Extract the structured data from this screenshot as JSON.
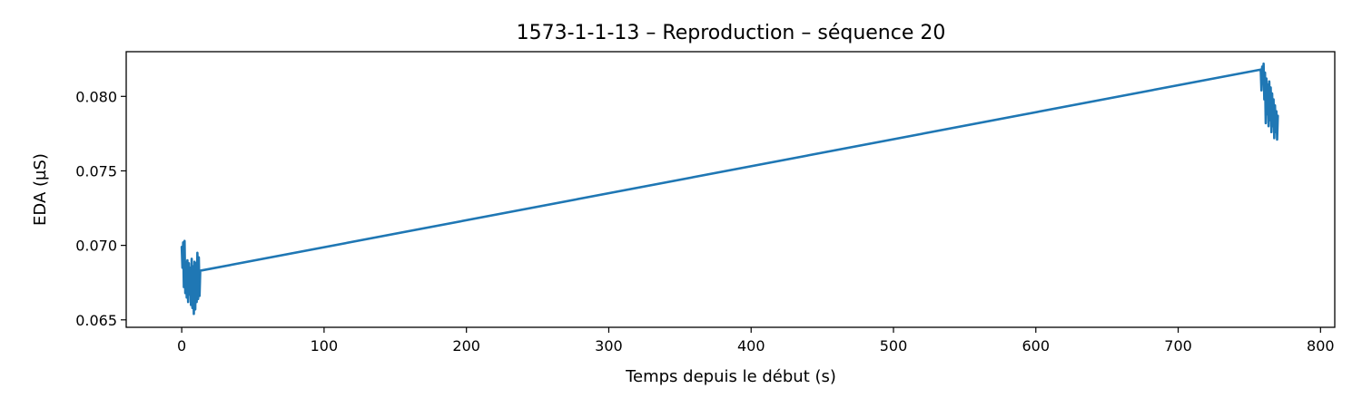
{
  "chart_data": {
    "type": "line",
    "title": "1573-1-1-13 – Reproduction – séquence 20",
    "xlabel": "Temps depuis le début (s)",
    "ylabel": "EDA (µS)",
    "xlim": [
      -39,
      810
    ],
    "ylim": [
      0.0645,
      0.083
    ],
    "xticks": [
      0,
      100,
      200,
      300,
      400,
      500,
      600,
      700,
      800
    ],
    "xtick_labels": [
      "0",
      "100",
      "200",
      "300",
      "400",
      "500",
      "600",
      "700",
      "800"
    ],
    "yticks": [
      0.065,
      0.07,
      0.075,
      0.08
    ],
    "ytick_labels": [
      "0.065",
      "0.070",
      "0.075",
      "0.080"
    ],
    "grid": false,
    "line_color": "#1f77b4",
    "series": [
      {
        "x": [
          0.0,
          0.5,
          1.0,
          1.5,
          2.0,
          2.5,
          3.0,
          3.5,
          4.0,
          4.5,
          5.0,
          5.5,
          6.0,
          6.5,
          7.0,
          7.5,
          8.0,
          8.5,
          9.0,
          9.5,
          10.0,
          10.5,
          11.0,
          11.5,
          12.0,
          12.5,
          13.0,
          758.0,
          758.5,
          759.0,
          759.5,
          760.0,
          760.5,
          761.0,
          761.5,
          762.0,
          762.5,
          763.0,
          763.5,
          764.0,
          764.5,
          765.0,
          765.5,
          766.0,
          766.5,
          767.0,
          767.5,
          768.0,
          768.5,
          769.0,
          769.5,
          770.0
        ],
        "y": [
          0.0699,
          0.0685,
          0.0702,
          0.0672,
          0.0703,
          0.0668,
          0.0689,
          0.0665,
          0.069,
          0.0662,
          0.0688,
          0.0667,
          0.0685,
          0.066,
          0.0691,
          0.0658,
          0.0686,
          0.0654,
          0.0689,
          0.0657,
          0.0688,
          0.0662,
          0.0695,
          0.0664,
          0.0692,
          0.0666,
          0.0683,
          0.0818,
          0.0804,
          0.082,
          0.081,
          0.0822,
          0.0798,
          0.0816,
          0.0782,
          0.0812,
          0.0788,
          0.0808,
          0.078,
          0.081,
          0.0784,
          0.0806,
          0.0776,
          0.0802,
          0.078,
          0.0798,
          0.0772,
          0.0794,
          0.0776,
          0.079,
          0.0771,
          0.0787
        ]
      }
    ]
  }
}
